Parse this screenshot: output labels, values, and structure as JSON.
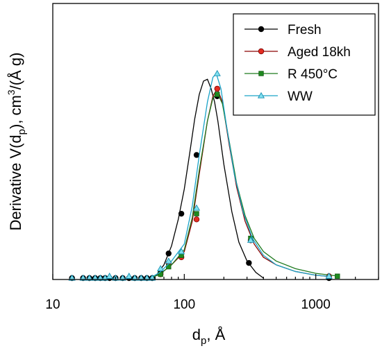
{
  "chart_data": {
    "type": "line",
    "xscale": "log",
    "xlim": [
      10,
      3000
    ],
    "ylim": [
      0,
      1.45
    ],
    "xticks": [
      10,
      100,
      1000
    ],
    "xtick_labels": [
      "10",
      "100",
      "1000"
    ],
    "xlabel": "d",
    "xlabel_sub": "p",
    "xlabel_suffix": ", Å",
    "ylabel_parts": [
      "Derivative V(d",
      "p",
      "), cm",
      "3",
      "/(Å g)"
    ],
    "yticks_shown": false,
    "grid": false,
    "legend_position": "top-right",
    "series": [
      {
        "name": "Fresh",
        "color": "#000000",
        "marker": "circle",
        "marker_fill": "#000000",
        "points": [
          [
            14,
            0.0
          ],
          [
            17,
            0.0
          ],
          [
            19,
            0.0
          ],
          [
            21,
            0.0
          ],
          [
            23,
            0.0
          ],
          [
            25,
            0.0
          ],
          [
            27,
            0.0
          ],
          [
            30,
            0.0
          ],
          [
            34,
            0.0
          ],
          [
            38,
            0.0
          ],
          [
            42,
            0.0
          ],
          [
            47,
            0.0
          ],
          [
            52,
            0.0
          ],
          [
            57,
            0.0
          ],
          [
            66,
            0.03
          ],
          [
            76,
            0.13
          ],
          [
            95,
            0.34
          ],
          [
            124,
            0.65
          ],
          [
            178,
            0.96
          ],
          [
            310,
            0.08
          ],
          [
            1260,
            0.0
          ]
        ],
        "curve": [
          [
            55,
            0.0
          ],
          [
            62,
            0.02
          ],
          [
            70,
            0.07
          ],
          [
            80,
            0.17
          ],
          [
            90,
            0.31
          ],
          [
            100,
            0.47
          ],
          [
            110,
            0.66
          ],
          [
            120,
            0.84
          ],
          [
            130,
            0.97
          ],
          [
            140,
            1.04
          ],
          [
            150,
            1.05
          ],
          [
            160,
            1.0
          ],
          [
            170,
            0.93
          ],
          [
            180,
            0.83
          ],
          [
            200,
            0.6
          ],
          [
            230,
            0.35
          ],
          [
            260,
            0.19
          ],
          [
            300,
            0.09
          ],
          [
            350,
            0.03
          ],
          [
            400,
            0.0
          ]
        ]
      },
      {
        "name": "Aged 18kh",
        "color": "#8b0000",
        "marker": "circle",
        "marker_fill": "#e32d22",
        "points": [
          [
            66,
            0.02
          ],
          [
            76,
            0.08
          ],
          [
            95,
            0.11
          ],
          [
            124,
            0.31
          ],
          [
            178,
            1.0
          ],
          [
            320,
            0.2
          ],
          [
            1260,
            0.01
          ]
        ],
        "curve": [
          [
            55,
            0.0
          ],
          [
            65,
            0.02
          ],
          [
            80,
            0.07
          ],
          [
            100,
            0.14
          ],
          [
            115,
            0.3
          ],
          [
            130,
            0.55
          ],
          [
            150,
            0.83
          ],
          [
            165,
            0.96
          ],
          [
            178,
            1.0
          ],
          [
            195,
            0.93
          ],
          [
            220,
            0.7
          ],
          [
            250,
            0.48
          ],
          [
            290,
            0.3
          ],
          [
            340,
            0.18
          ],
          [
            400,
            0.11
          ],
          [
            500,
            0.07
          ],
          [
            700,
            0.035
          ],
          [
            1000,
            0.015
          ],
          [
            1300,
            0.008
          ]
        ]
      },
      {
        "name": "R 450°C",
        "color": "#1f7a1f",
        "marker": "square",
        "marker_fill": "#1f8a1f",
        "points": [
          [
            66,
            0.02
          ],
          [
            76,
            0.06
          ],
          [
            95,
            0.12
          ],
          [
            124,
            0.34
          ],
          [
            178,
            0.97
          ],
          [
            320,
            0.21
          ],
          [
            1460,
            0.01
          ]
        ],
        "curve": [
          [
            55,
            0.0
          ],
          [
            65,
            0.02
          ],
          [
            80,
            0.07
          ],
          [
            100,
            0.15
          ],
          [
            115,
            0.32
          ],
          [
            130,
            0.57
          ],
          [
            150,
            0.83
          ],
          [
            165,
            0.95
          ],
          [
            178,
            0.98
          ],
          [
            195,
            0.92
          ],
          [
            220,
            0.72
          ],
          [
            250,
            0.5
          ],
          [
            290,
            0.33
          ],
          [
            340,
            0.21
          ],
          [
            400,
            0.14
          ],
          [
            500,
            0.09
          ],
          [
            700,
            0.05
          ],
          [
            1000,
            0.025
          ],
          [
            1500,
            0.01
          ]
        ]
      },
      {
        "name": "WW",
        "color": "#1aa3c8",
        "marker": "triangle",
        "marker_fill": "#7fe0f0",
        "points": [
          [
            14,
            0.0
          ],
          [
            17,
            0.0
          ],
          [
            19,
            0.0
          ],
          [
            21,
            0.0
          ],
          [
            23,
            0.0
          ],
          [
            25,
            0.0
          ],
          [
            27,
            0.01
          ],
          [
            30,
            0.0
          ],
          [
            34,
            0.0
          ],
          [
            38,
            0.01
          ],
          [
            42,
            0.0
          ],
          [
            47,
            0.0
          ],
          [
            52,
            0.0
          ],
          [
            57,
            0.0
          ],
          [
            66,
            0.05
          ],
          [
            76,
            0.09
          ],
          [
            95,
            0.14
          ],
          [
            124,
            0.37
          ],
          [
            178,
            1.08
          ],
          [
            320,
            0.2
          ],
          [
            1260,
            0.01
          ]
        ],
        "curve": [
          [
            55,
            0.0
          ],
          [
            65,
            0.03
          ],
          [
            80,
            0.09
          ],
          [
            100,
            0.18
          ],
          [
            115,
            0.38
          ],
          [
            130,
            0.65
          ],
          [
            150,
            0.93
          ],
          [
            165,
            1.06
          ],
          [
            175,
            1.08
          ],
          [
            190,
            1.0
          ],
          [
            210,
            0.8
          ],
          [
            240,
            0.55
          ],
          [
            280,
            0.35
          ],
          [
            330,
            0.21
          ],
          [
            400,
            0.12
          ],
          [
            500,
            0.07
          ],
          [
            700,
            0.035
          ],
          [
            1000,
            0.015
          ],
          [
            1300,
            0.008
          ]
        ]
      }
    ]
  }
}
